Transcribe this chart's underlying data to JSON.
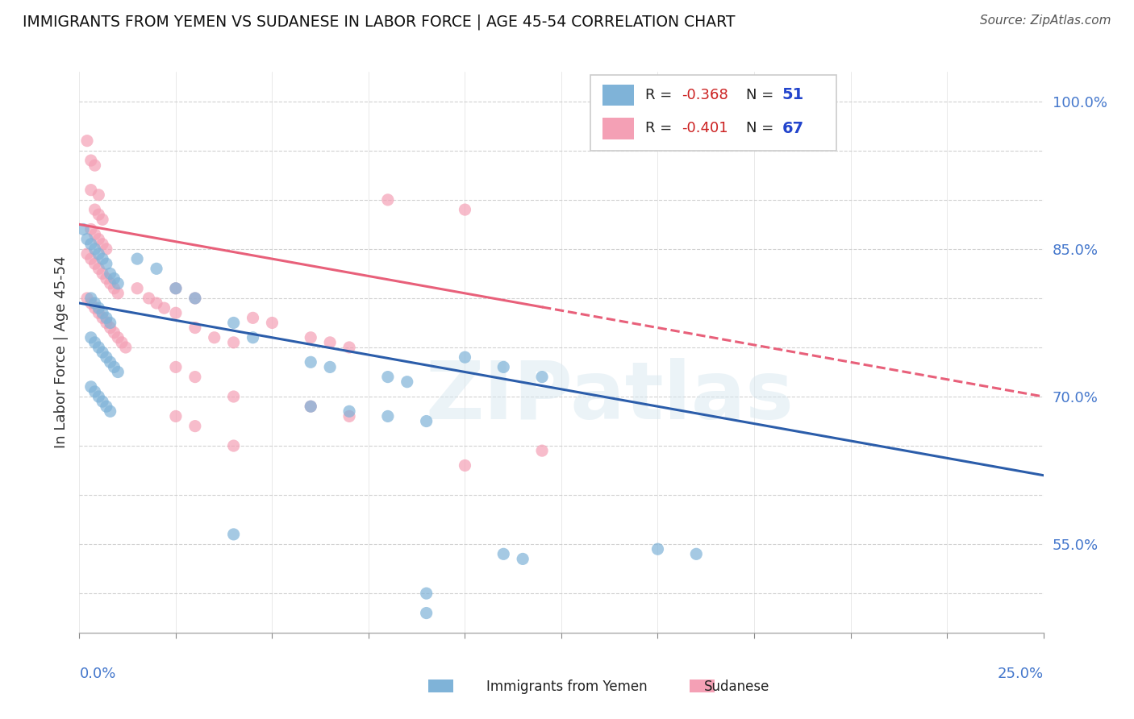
{
  "title": "IMMIGRANTS FROM YEMEN VS SUDANESE IN LABOR FORCE | AGE 45-54 CORRELATION CHART",
  "source": "Source: ZipAtlas.com",
  "ylabel": "In Labor Force | Age 45-54",
  "x_range": [
    0.0,
    0.25
  ],
  "y_range": [
    0.46,
    1.03
  ],
  "yemen_color": "#7fb3d8",
  "sudan_color": "#f4a0b5",
  "yemen_line_color": "#2b5daa",
  "sudan_line_color": "#e8607a",
  "watermark": "ZIPatlas",
  "background_color": "#ffffff",
  "yemen_R": "-0.368",
  "yemen_N": "51",
  "sudan_R": "-0.401",
  "sudan_N": "67",
  "yemen_scatter": [
    [
      0.001,
      0.87
    ],
    [
      0.002,
      0.86
    ],
    [
      0.003,
      0.855
    ],
    [
      0.004,
      0.85
    ],
    [
      0.005,
      0.845
    ],
    [
      0.006,
      0.84
    ],
    [
      0.007,
      0.835
    ],
    [
      0.008,
      0.825
    ],
    [
      0.009,
      0.82
    ],
    [
      0.01,
      0.815
    ],
    [
      0.003,
      0.8
    ],
    [
      0.004,
      0.795
    ],
    [
      0.005,
      0.79
    ],
    [
      0.006,
      0.785
    ],
    [
      0.007,
      0.78
    ],
    [
      0.008,
      0.775
    ],
    [
      0.003,
      0.76
    ],
    [
      0.004,
      0.755
    ],
    [
      0.005,
      0.75
    ],
    [
      0.006,
      0.745
    ],
    [
      0.007,
      0.74
    ],
    [
      0.008,
      0.735
    ],
    [
      0.009,
      0.73
    ],
    [
      0.01,
      0.725
    ],
    [
      0.003,
      0.71
    ],
    [
      0.004,
      0.705
    ],
    [
      0.005,
      0.7
    ],
    [
      0.006,
      0.695
    ],
    [
      0.007,
      0.69
    ],
    [
      0.008,
      0.685
    ],
    [
      0.015,
      0.84
    ],
    [
      0.02,
      0.83
    ],
    [
      0.025,
      0.81
    ],
    [
      0.03,
      0.8
    ],
    [
      0.04,
      0.775
    ],
    [
      0.045,
      0.76
    ],
    [
      0.06,
      0.735
    ],
    [
      0.065,
      0.73
    ],
    [
      0.08,
      0.72
    ],
    [
      0.085,
      0.715
    ],
    [
      0.1,
      0.74
    ],
    [
      0.11,
      0.73
    ],
    [
      0.12,
      0.72
    ],
    [
      0.06,
      0.69
    ],
    [
      0.07,
      0.685
    ],
    [
      0.08,
      0.68
    ],
    [
      0.09,
      0.675
    ],
    [
      0.11,
      0.54
    ],
    [
      0.115,
      0.535
    ],
    [
      0.15,
      0.545
    ],
    [
      0.16,
      0.54
    ],
    [
      0.09,
      0.48
    ],
    [
      0.04,
      0.56
    ],
    [
      0.09,
      0.5
    ]
  ],
  "sudan_scatter": [
    [
      0.002,
      0.96
    ],
    [
      0.003,
      0.94
    ],
    [
      0.004,
      0.935
    ],
    [
      0.003,
      0.91
    ],
    [
      0.005,
      0.905
    ],
    [
      0.004,
      0.89
    ],
    [
      0.005,
      0.885
    ],
    [
      0.006,
      0.88
    ],
    [
      0.003,
      0.87
    ],
    [
      0.004,
      0.865
    ],
    [
      0.005,
      0.86
    ],
    [
      0.006,
      0.855
    ],
    [
      0.007,
      0.85
    ],
    [
      0.002,
      0.845
    ],
    [
      0.003,
      0.84
    ],
    [
      0.004,
      0.835
    ],
    [
      0.005,
      0.83
    ],
    [
      0.006,
      0.825
    ],
    [
      0.007,
      0.82
    ],
    [
      0.008,
      0.815
    ],
    [
      0.009,
      0.81
    ],
    [
      0.01,
      0.805
    ],
    [
      0.002,
      0.8
    ],
    [
      0.003,
      0.795
    ],
    [
      0.004,
      0.79
    ],
    [
      0.005,
      0.785
    ],
    [
      0.006,
      0.78
    ],
    [
      0.007,
      0.775
    ],
    [
      0.008,
      0.77
    ],
    [
      0.009,
      0.765
    ],
    [
      0.01,
      0.76
    ],
    [
      0.011,
      0.755
    ],
    [
      0.012,
      0.75
    ],
    [
      0.015,
      0.81
    ],
    [
      0.018,
      0.8
    ],
    [
      0.02,
      0.795
    ],
    [
      0.022,
      0.79
    ],
    [
      0.025,
      0.785
    ],
    [
      0.025,
      0.81
    ],
    [
      0.03,
      0.77
    ],
    [
      0.03,
      0.8
    ],
    [
      0.035,
      0.76
    ],
    [
      0.04,
      0.755
    ],
    [
      0.045,
      0.78
    ],
    [
      0.05,
      0.775
    ],
    [
      0.06,
      0.76
    ],
    [
      0.065,
      0.755
    ],
    [
      0.07,
      0.75
    ],
    [
      0.025,
      0.73
    ],
    [
      0.03,
      0.72
    ],
    [
      0.04,
      0.7
    ],
    [
      0.025,
      0.68
    ],
    [
      0.03,
      0.67
    ],
    [
      0.04,
      0.65
    ],
    [
      0.06,
      0.69
    ],
    [
      0.07,
      0.68
    ],
    [
      0.1,
      0.63
    ],
    [
      0.12,
      0.645
    ],
    [
      0.08,
      0.9
    ],
    [
      0.1,
      0.89
    ]
  ]
}
